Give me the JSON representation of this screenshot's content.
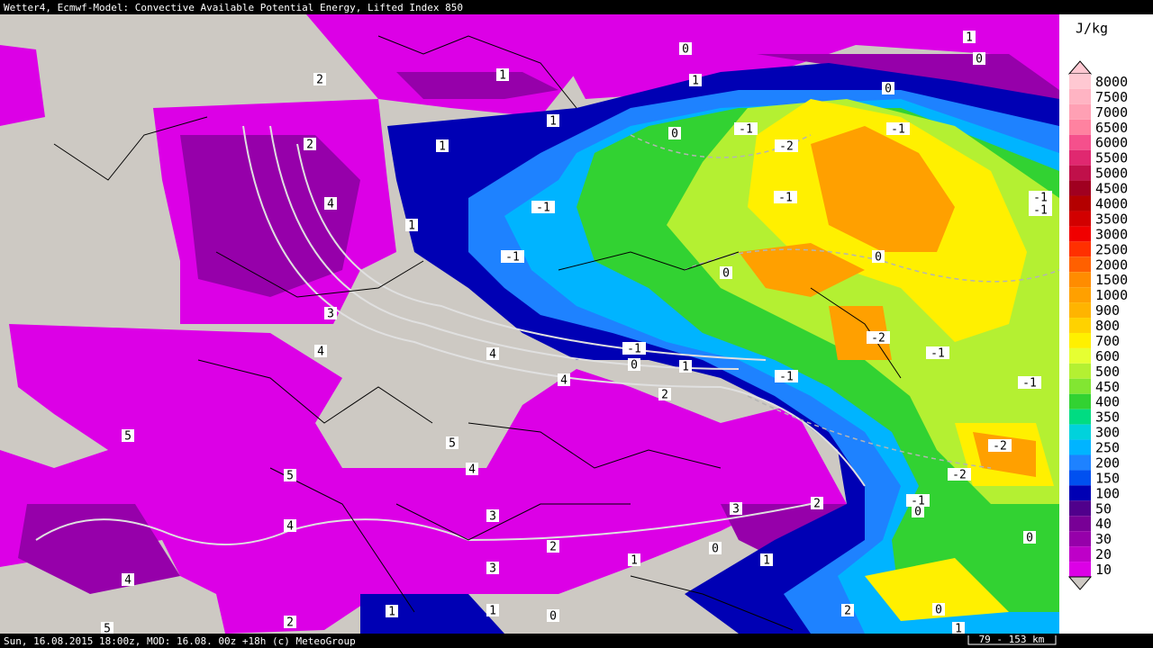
{
  "header": {
    "title": "Wetter4, Ecmwf-Model: Convective Available Potential Energy, Lifted Index 850"
  },
  "footer": {
    "info": "Sun, 16.08.2015 18:00z, MOD: 16.08. 00z +18h (c) MeteoGroup",
    "scale": "79 - 153 km"
  },
  "legend": {
    "unit": "J/kg",
    "entries": [
      {
        "label": "8000",
        "color": "#ffc8d2"
      },
      {
        "label": "7500",
        "color": "#ffb4c3"
      },
      {
        "label": "7000",
        "color": "#ffa0b4"
      },
      {
        "label": "6500",
        "color": "#ff82a0"
      },
      {
        "label": "6000",
        "color": "#f5508c"
      },
      {
        "label": "5500",
        "color": "#e02870"
      },
      {
        "label": "5000",
        "color": "#c0104a"
      },
      {
        "label": "4500",
        "color": "#a00020"
      },
      {
        "label": "4000",
        "color": "#b40000"
      },
      {
        "label": "3500",
        "color": "#d20000"
      },
      {
        "label": "3000",
        "color": "#f00000"
      },
      {
        "label": "2500",
        "color": "#ff3000"
      },
      {
        "label": "2000",
        "color": "#ff6000"
      },
      {
        "label": "1500",
        "color": "#ff8c00"
      },
      {
        "label": "1000",
        "color": "#ffa000"
      },
      {
        "label": "900",
        "color": "#ffb400"
      },
      {
        "label": "800",
        "color": "#ffd200"
      },
      {
        "label": "700",
        "color": "#fff000"
      },
      {
        "label": "600",
        "color": "#e6ff32"
      },
      {
        "label": "500",
        "color": "#b4f032"
      },
      {
        "label": "450",
        "color": "#82e632"
      },
      {
        "label": "400",
        "color": "#32d232"
      },
      {
        "label": "350",
        "color": "#00dc82"
      },
      {
        "label": "300",
        "color": "#00d2dc"
      },
      {
        "label": "250",
        "color": "#00b4ff"
      },
      {
        "label": "200",
        "color": "#1e82ff"
      },
      {
        "label": "150",
        "color": "#0050f0"
      },
      {
        "label": "100",
        "color": "#0000b4"
      },
      {
        "label": "50",
        "color": "#50008c"
      },
      {
        "label": "40",
        "color": "#780096"
      },
      {
        "label": "30",
        "color": "#9600aa"
      },
      {
        "label": "20",
        "color": "#be00c8"
      },
      {
        "label": "10",
        "color": "#dc00e6"
      }
    ]
  },
  "map": {
    "contour_labels": [
      "2",
      "1",
      "2",
      "4",
      "1",
      "1",
      "3",
      "4",
      "1",
      "0",
      "1",
      "1",
      "0",
      "0",
      "0",
      "-1",
      "-1",
      "-2",
      "-1",
      "-1",
      "-1",
      "-1",
      "-1",
      "0",
      "0",
      "-2",
      "-1",
      "-1",
      "0",
      "1",
      "-1",
      "-1",
      "4",
      "4",
      "2",
      "5",
      "5",
      "4",
      "5",
      "-2",
      "-2",
      "2",
      "-1",
      "0",
      "3",
      "3",
      "4",
      "0",
      "2",
      "0",
      "1",
      "1",
      "3",
      "4",
      "1",
      "1",
      "0",
      "2",
      "0",
      "2",
      "5",
      "1"
    ]
  }
}
